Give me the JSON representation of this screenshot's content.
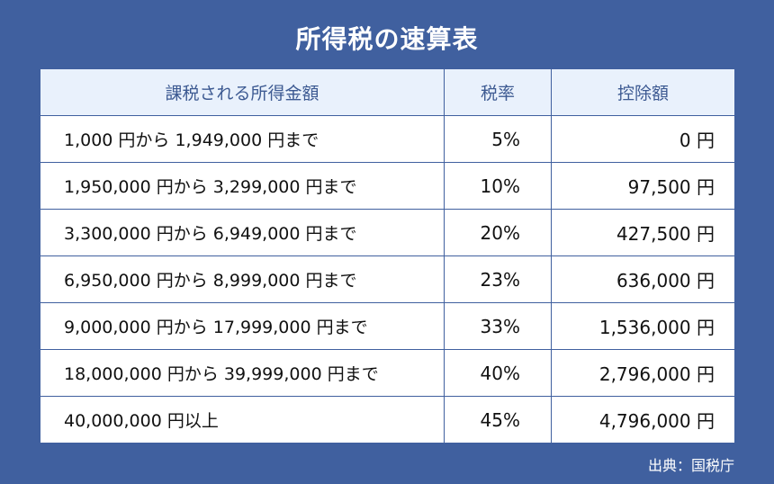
{
  "title": "所得税の速算表",
  "table": {
    "headers": {
      "range": "課税される所得金額",
      "rate": "税率",
      "deduction": "控除額"
    },
    "rows": [
      {
        "range": "1,000 円から 1,949,000 円まで",
        "rate": "5%",
        "deduction": "0 円"
      },
      {
        "range": "1,950,000 円から 3,299,000 円まで",
        "rate": "10%",
        "deduction": "97,500 円"
      },
      {
        "range": "3,300,000 円から 6,949,000 円まで",
        "rate": "20%",
        "deduction": "427,500 円"
      },
      {
        "range": "6,950,000 円から 8,999,000 円まで",
        "rate": "23%",
        "deduction": "636,000 円"
      },
      {
        "range": "9,000,000 円から 17,999,000 円まで",
        "rate": "33%",
        "deduction": "1,536,000 円"
      },
      {
        "range": "18,000,000 円から 39,999,000 円まで",
        "rate": "40%",
        "deduction": "2,796,000 円"
      },
      {
        "range": "40,000,000 円以上",
        "rate": "45%",
        "deduction": "4,796,000 円"
      }
    ]
  },
  "source": "出典：国税庁",
  "colors": {
    "background": "#40609f",
    "header_fill": "#e9f1fc",
    "header_text": "#3d5a92"
  }
}
